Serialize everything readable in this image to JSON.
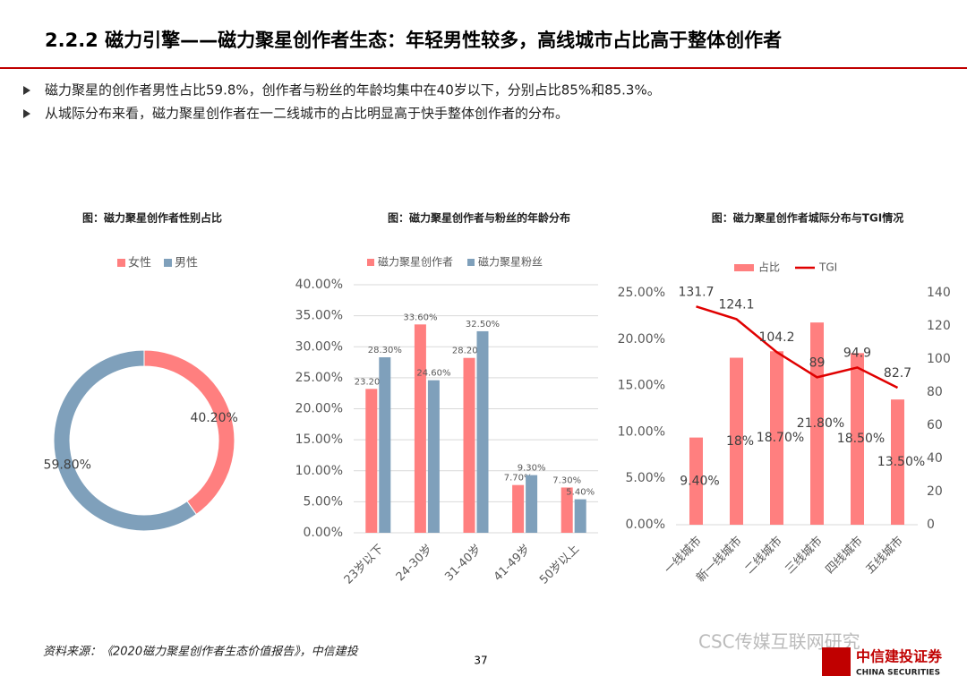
{
  "header": {
    "title": "2.2.2 磁力引擎——磁力聚星创作者生态：年轻男性较多，高线城市占比高于整体创作者"
  },
  "bullets": [
    "磁力聚星的创作者男性占比59.8%，创作者与粉丝的年龄均集中在40岁以下，分别占比85%和85.3%。",
    "从城际分布来看，磁力聚星创作者在一二线城市的占比明显高于快手整体创作者的分布。"
  ],
  "chart_data": [
    {
      "type": "donut",
      "title": "图：磁力聚星创作者性别占比",
      "categories": [
        "女性",
        "男性"
      ],
      "values": [
        40.2,
        59.8
      ],
      "value_labels": [
        "40.20%",
        "59.80%"
      ],
      "colors": [
        "#ff7f7f",
        "#7fa0bb"
      ]
    },
    {
      "type": "bar",
      "title": "图：磁力聚星创作者与粉丝的年龄分布",
      "categories": [
        "23岁以下",
        "24-30岁",
        "31-40岁",
        "41-49岁",
        "50岁以上"
      ],
      "series": [
        {
          "name": "磁力聚星创作者",
          "color": "#ff7f7f",
          "values": [
            23.2,
            33.6,
            28.2,
            7.7,
            7.3
          ],
          "value_labels": [
            "23.20%",
            "33.60%",
            "28.20%",
            "7.70%",
            "7.30%"
          ]
        },
        {
          "name": "磁力聚星粉丝",
          "color": "#7fa0bb",
          "values": [
            28.3,
            24.6,
            32.5,
            9.3,
            5.4
          ],
          "value_labels": [
            "28.30%",
            "24.60%",
            "32.50%",
            "9.30%",
            "5.40%"
          ]
        }
      ],
      "ylim": [
        0,
        40
      ],
      "yticks": [
        {
          "value": 0,
          "label": "0.00%"
        },
        {
          "value": 5,
          "label": "5.00%"
        },
        {
          "value": 10,
          "label": "10.00%"
        },
        {
          "value": 15,
          "label": "15.00%"
        },
        {
          "value": 20,
          "label": "20.00%"
        },
        {
          "value": 25,
          "label": "25.00%"
        },
        {
          "value": 30,
          "label": "30.00%"
        },
        {
          "value": 35,
          "label": "35.00%"
        },
        {
          "value": 40,
          "label": "40.00%"
        }
      ],
      "grid": true
    },
    {
      "type": "combo",
      "title": "图：磁力聚星创作者城际分布与TGI情况",
      "categories": [
        "一线城市",
        "新一线城市",
        "二线城市",
        "三线城市",
        "四线城市",
        "五线城市"
      ],
      "series": [
        {
          "name": "占比",
          "type": "bar",
          "color": "#ff7f7f",
          "values": [
            9.4,
            18,
            18.7,
            21.8,
            18.5,
            13.5
          ],
          "value_labels": [
            "9.40%",
            "18%",
            "18.70%",
            "21.80%",
            "18.50%",
            "13.50%"
          ]
        },
        {
          "name": "TGI",
          "type": "line",
          "axis": "y2",
          "color": "#e00000",
          "values": [
            131.7,
            124.1,
            104.2,
            89,
            94.9,
            82.7
          ]
        }
      ],
      "ylim": [
        0,
        25
      ],
      "yticks": [
        {
          "value": 0,
          "label": "0.00%"
        },
        {
          "value": 5,
          "label": "5.00%"
        },
        {
          "value": 10,
          "label": "10.00%"
        },
        {
          "value": 15,
          "label": "15.00%"
        },
        {
          "value": 20,
          "label": "20.00%"
        },
        {
          "value": 25,
          "label": "25.00%"
        }
      ],
      "y2lim": [
        0,
        140
      ],
      "y2ticks": [
        0,
        20,
        40,
        60,
        80,
        100,
        120,
        140
      ],
      "grid": false
    }
  ],
  "footer": {
    "source": "资料来源：《2020磁力聚星创作者生态价值报告》，中信建投",
    "page": "37",
    "watermark": "CSC传媒互联网研究",
    "logo": "中信建投证券",
    "logo_en": "CHINA SECURITIES"
  }
}
